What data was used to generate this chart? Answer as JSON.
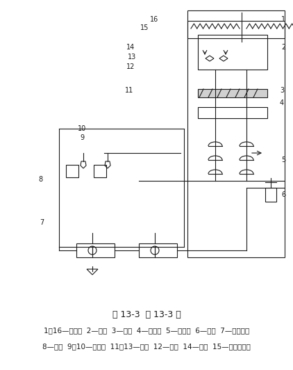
{
  "title": "图 13-3  例 13-3 图",
  "caption_line1": "1、16—锁紧缸  2—机架  3—非门  4—放大器  5—手动阀  6—气源  7—外部气源",
  "caption_line2": "8—气源  9、10—接受嘴  11、13—喷嘴  12—砂带  14—禁门  15—气液联动缸",
  "bg_color": "#ffffff",
  "line_color": "#1a1a1a",
  "font_color": "#1a1a1a",
  "title_fontsize": 9,
  "caption_fontsize": 7.5,
  "label_fontsize": 7
}
